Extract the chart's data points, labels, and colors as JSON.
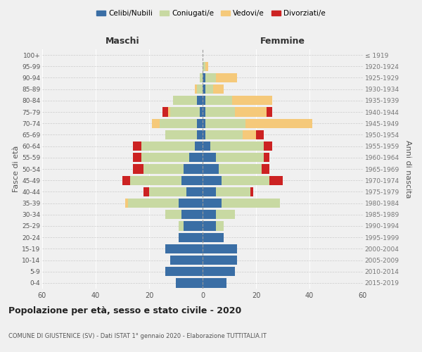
{
  "age_groups": [
    "0-4",
    "5-9",
    "10-14",
    "15-19",
    "20-24",
    "25-29",
    "30-34",
    "35-39",
    "40-44",
    "45-49",
    "50-54",
    "55-59",
    "60-64",
    "65-69",
    "70-74",
    "75-79",
    "80-84",
    "85-89",
    "90-94",
    "95-99",
    "100+"
  ],
  "birth_years": [
    "2015-2019",
    "2010-2014",
    "2005-2009",
    "2000-2004",
    "1995-1999",
    "1990-1994",
    "1985-1989",
    "1980-1984",
    "1975-1979",
    "1970-1974",
    "1965-1969",
    "1960-1964",
    "1955-1959",
    "1950-1954",
    "1945-1949",
    "1940-1944",
    "1935-1939",
    "1930-1934",
    "1925-1929",
    "1920-1924",
    "≤ 1919"
  ],
  "maschi": {
    "celibi": [
      10,
      14,
      12,
      14,
      9,
      7,
      8,
      9,
      6,
      8,
      7,
      5,
      3,
      2,
      2,
      1,
      2,
      0,
      0,
      0,
      0
    ],
    "coniugati": [
      0,
      0,
      0,
      0,
      0,
      2,
      6,
      19,
      14,
      19,
      15,
      18,
      20,
      12,
      14,
      11,
      9,
      2,
      1,
      0,
      0
    ],
    "vedovi": [
      0,
      0,
      0,
      0,
      0,
      0,
      0,
      1,
      0,
      0,
      0,
      0,
      0,
      0,
      3,
      1,
      0,
      1,
      0,
      0,
      0
    ],
    "divorziati": [
      0,
      0,
      0,
      0,
      0,
      0,
      0,
      0,
      2,
      3,
      4,
      3,
      3,
      0,
      0,
      2,
      0,
      0,
      0,
      0,
      0
    ]
  },
  "femmine": {
    "nubili": [
      9,
      12,
      13,
      13,
      8,
      5,
      5,
      7,
      5,
      7,
      6,
      5,
      3,
      1,
      1,
      1,
      1,
      1,
      1,
      0,
      0
    ],
    "coniugate": [
      0,
      0,
      0,
      0,
      0,
      3,
      7,
      22,
      13,
      18,
      16,
      18,
      20,
      14,
      15,
      11,
      10,
      3,
      4,
      1,
      0
    ],
    "vedove": [
      0,
      0,
      0,
      0,
      0,
      0,
      0,
      0,
      0,
      0,
      0,
      0,
      0,
      5,
      25,
      12,
      15,
      4,
      8,
      1,
      0
    ],
    "divorziate": [
      0,
      0,
      0,
      0,
      0,
      0,
      0,
      0,
      1,
      5,
      3,
      2,
      3,
      3,
      0,
      2,
      0,
      0,
      0,
      0,
      0
    ]
  },
  "color_celibi": "#3a6ea5",
  "color_coniugati": "#c8d9a2",
  "color_vedovi": "#f5c97a",
  "color_divorziati": "#cc2222",
  "xlim": 60,
  "title": "Popolazione per età, sesso e stato civile - 2020",
  "subtitle": "COMUNE DI GIUSTENICE (SV) - Dati ISTAT 1° gennaio 2020 - Elaborazione TUTTITALIA.IT",
  "ylabel_left": "Fasce di età",
  "ylabel_right": "Anni di nascita",
  "header_left": "Maschi",
  "header_right": "Femmine",
  "background_color": "#f0f0f0"
}
